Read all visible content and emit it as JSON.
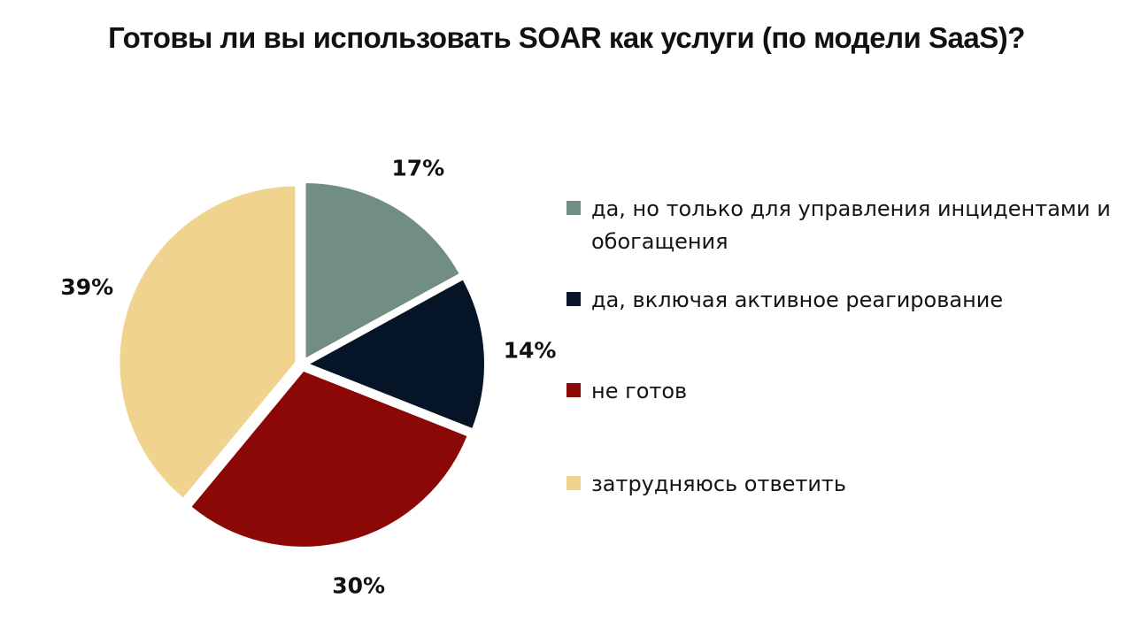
{
  "title": "Готовы ли вы использовать SOAR как услуги (по модели SaaS)?",
  "chart_data": {
    "type": "pie",
    "title": "Готовы ли вы использовать SOAR как услуги (по модели SaaS)?",
    "slices": [
      {
        "label": "да, но только для управления инцидентами и обогащения",
        "value": 17,
        "display": "17%",
        "color": "#728d81"
      },
      {
        "label": "да, включая активное реагирование",
        "value": 14,
        "display": "14%",
        "color": "#051426"
      },
      {
        "label": "не готов",
        "value": 30,
        "display": "30%",
        "color": "#8b0806"
      },
      {
        "label": "затрудняюсь ответить",
        "value": 39,
        "display": "39%",
        "color": "#f0d38f"
      }
    ],
    "legend": {
      "position": "right"
    }
  }
}
